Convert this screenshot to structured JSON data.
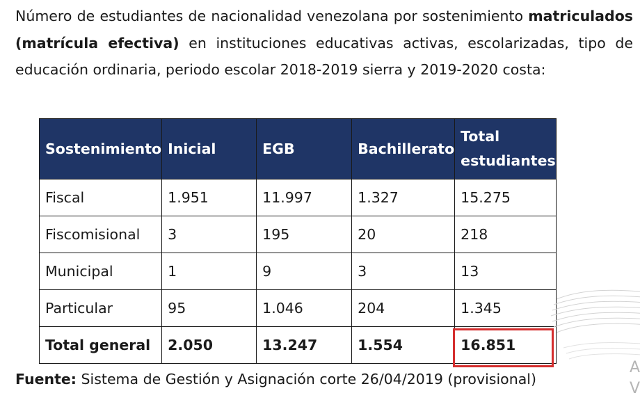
{
  "intro": {
    "part1": "Número de estudiantes de nacionalidad venezolana por sostenimiento",
    "bold": "matriculados (matrícula efectiva)",
    "part2": "en instituciones educativas activas, escolarizadas, tipo de educación ordinaria, periodo escolar 2018-2019 sierra y 2019-2020 costa:"
  },
  "table": {
    "headers": [
      "Sostenimiento",
      "Inicial",
      "EGB",
      "Bachillerato",
      "Total estudiantes"
    ],
    "rows": [
      [
        "Fiscal",
        "1.951",
        "11.997",
        "1.327",
        "15.275"
      ],
      [
        "Fiscomisional",
        "3",
        "195",
        "20",
        "218"
      ],
      [
        "Municipal",
        "1",
        "9",
        "3",
        "13"
      ],
      [
        "Particular",
        "95",
        "1.046",
        "204",
        "1.345"
      ]
    ],
    "total_row": [
      "Total general",
      "2.050",
      "13.247",
      "1.554",
      "16.851"
    ]
  },
  "source": {
    "label": "Fuente:",
    "text": "Sistema de Gestión y Asignación corte 26/04/2019 (provisional)"
  },
  "colors": {
    "header_bg": "#1f3566",
    "highlight": "#d42e2e"
  },
  "corner_text": {
    "line1": "A",
    "line2": "V"
  }
}
